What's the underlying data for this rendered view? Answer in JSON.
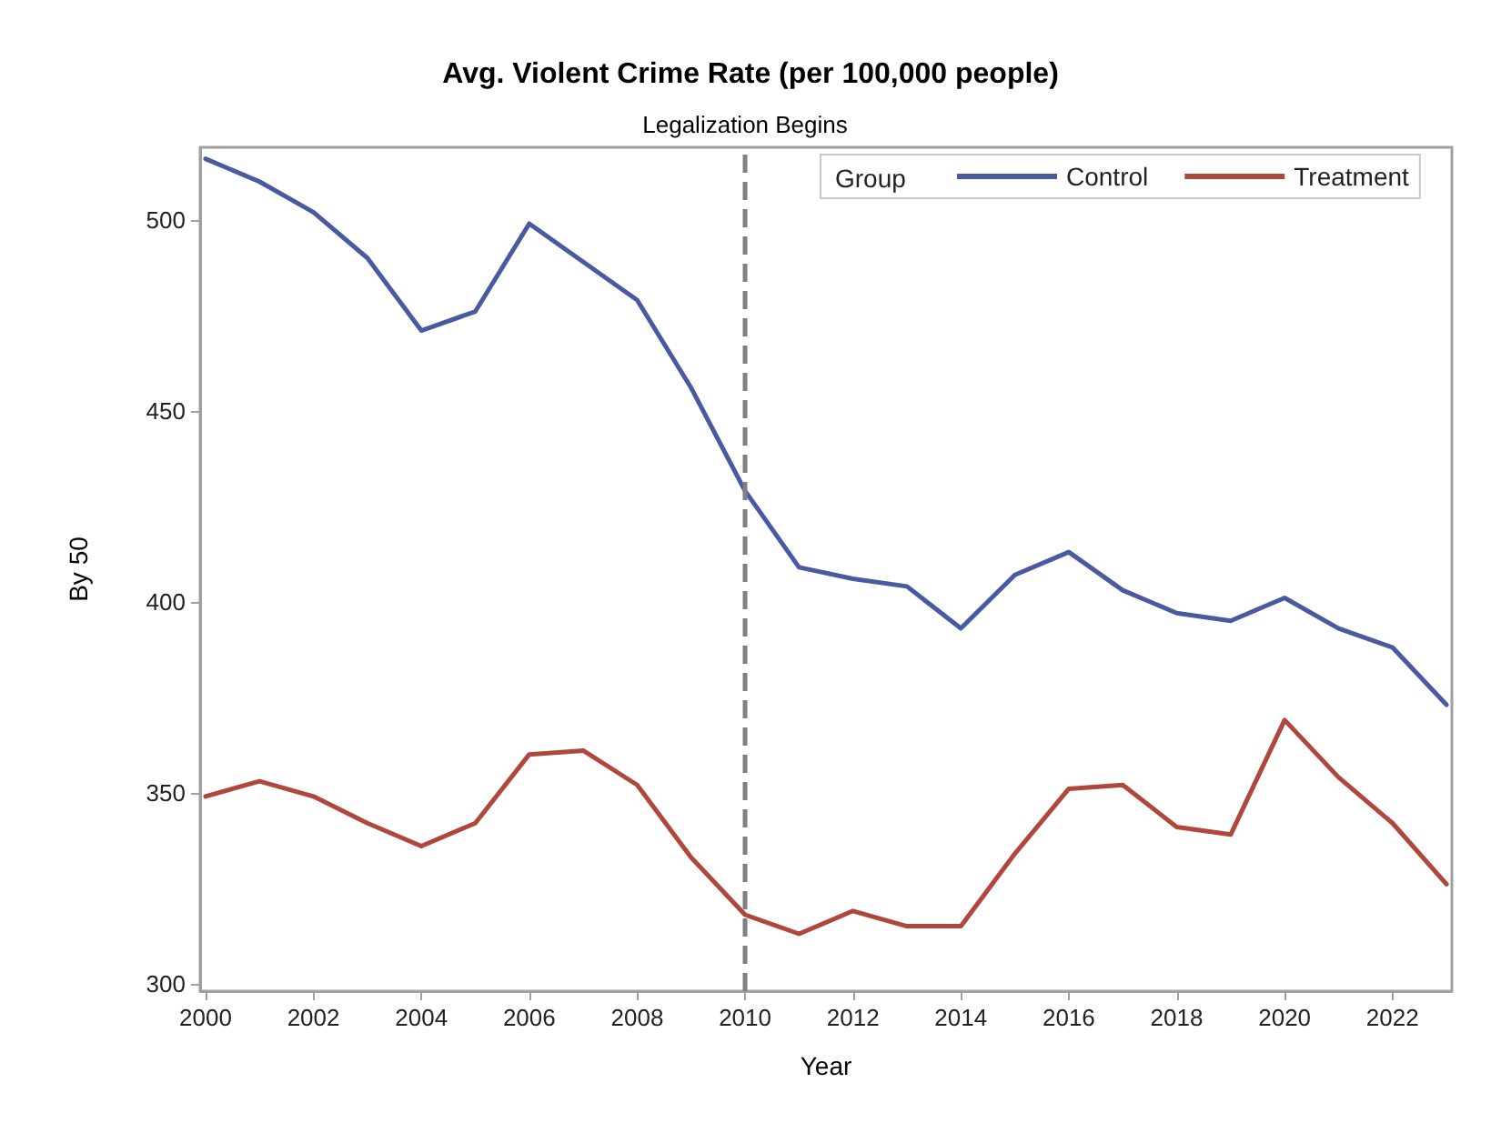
{
  "chart_data": {
    "type": "line",
    "title": "Avg. Violent Crime Rate (per 100,000 people)",
    "xlabel": "Year",
    "ylabel": "By 50",
    "legend_title": "Group",
    "legend": "top right",
    "grid": false,
    "marker": "none",
    "line_style": "solid",
    "x": [
      2000,
      2001,
      2002,
      2003,
      2004,
      2005,
      2006,
      2007,
      2008,
      2009,
      2010,
      2011,
      2012,
      2013,
      2014,
      2015,
      2016,
      2017,
      2018,
      2019,
      2020,
      2021,
      2022,
      2023
    ],
    "series": [
      {
        "name": "Control",
        "color": "#4a5aa0",
        "values": [
          516,
          510,
          502,
          490,
          471,
          476,
          499,
          489,
          479,
          456,
          429,
          409,
          406,
          404,
          393,
          407,
          413,
          403,
          397,
          395,
          401,
          393,
          388,
          373
        ]
      },
      {
        "name": "Treatment",
        "color": "#b0473c",
        "values": [
          349,
          353,
          349,
          342,
          336,
          342,
          360,
          361,
          352,
          333,
          318,
          313,
          319,
          315,
          315,
          334,
          351,
          352,
          341,
          339,
          369,
          354,
          342,
          326
        ]
      }
    ],
    "xlim": [
      1999.9,
      2023.1
    ],
    "xticks": [
      2000,
      2002,
      2004,
      2006,
      2008,
      2010,
      2012,
      2014,
      2016,
      2018,
      2020,
      2022
    ],
    "ylim": [
      298,
      519
    ],
    "yticks": [
      300,
      350,
      400,
      450,
      500
    ],
    "ref_lines": [
      {
        "axis": "x",
        "value": 2010,
        "label": "Legalization Begins",
        "color": "#808080",
        "line_style": "dashed"
      }
    ]
  }
}
